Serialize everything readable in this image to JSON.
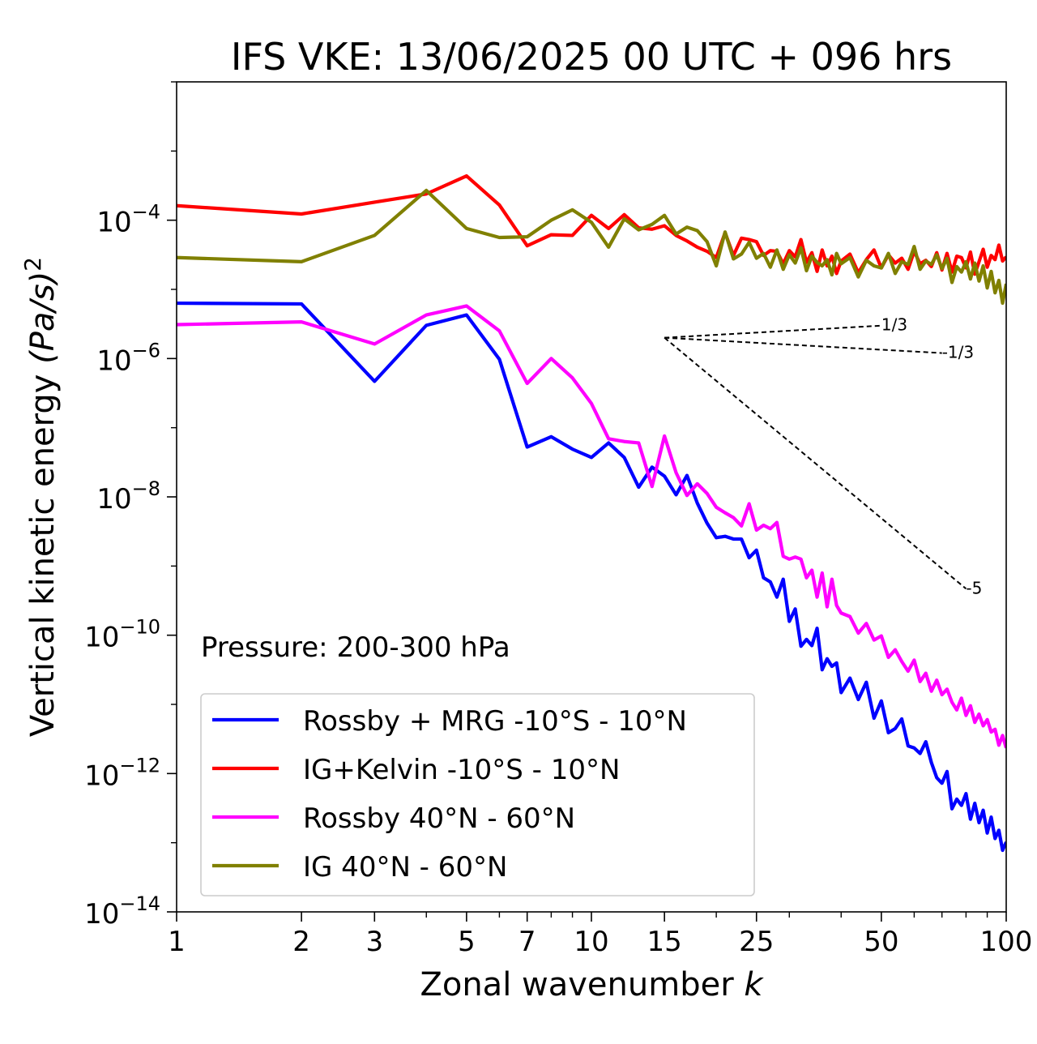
{
  "chart_data": {
    "type": "line",
    "title": "IFS VKE: 13/06/2025 00 UTC + 096 hrs",
    "xlabel": "Zonal wavenumber",
    "xlabel_var": "k",
    "ylabel": "Vertical kinetic energy",
    "ylabel_units": "(Pa/s)",
    "ylabel_exp": "2",
    "xscale": "log",
    "yscale": "log",
    "xlim": [
      1,
      100
    ],
    "ylim": [
      1e-14,
      0.01
    ],
    "xticks": [
      1,
      2,
      3,
      5,
      7,
      10,
      15,
      25,
      50,
      100
    ],
    "xtick_labels": [
      "1",
      "2",
      "3",
      "5",
      "7",
      "10",
      "15",
      "25",
      "50",
      "100"
    ],
    "yticks_exp": [
      -14,
      -12,
      -10,
      -8,
      -6,
      -4
    ],
    "ytick_base": "10",
    "ytick_exp_labels": [
      "−14",
      "−12",
      "−10",
      "−8",
      "−6",
      "−4"
    ],
    "annotation": "Pressure: 200-300 hPa",
    "legend_position": "lower-left",
    "grid": false,
    "reference_lines": [
      {
        "label": "1/3",
        "slope": 0.3333,
        "x": [
          15,
          50
        ],
        "y": [
          2e-06,
          2.99e-06
        ]
      },
      {
        "label": "-1/3",
        "slope": -0.3333,
        "x": [
          15,
          70
        ],
        "y": [
          2e-06,
          1.2e-06
        ]
      },
      {
        "label": "-5",
        "slope": -5,
        "x": [
          15,
          80
        ],
        "y": [
          2e-06,
          4.7e-10
        ]
      }
    ],
    "series": [
      {
        "name": "Rossby + MRG -10°S - 10°N",
        "color": "#0000ff",
        "k": [
          1,
          2,
          3,
          4,
          5,
          6,
          7,
          8,
          9,
          10,
          11,
          12,
          13,
          14,
          15,
          16,
          17,
          18,
          19,
          20,
          21,
          22,
          23,
          24,
          25,
          26,
          27,
          28,
          29,
          30,
          31,
          32,
          33,
          34,
          35,
          36,
          37,
          38,
          39,
          40,
          42,
          44,
          46,
          48,
          50,
          52,
          54,
          56,
          58,
          60,
          62,
          64,
          66,
          68,
          70,
          72,
          74,
          76,
          78,
          80,
          82,
          84,
          86,
          88,
          90,
          92,
          94,
          96,
          98,
          100
        ],
        "log10_y": [
          -5.2,
          -5.21,
          -6.33,
          -5.52,
          -5.37,
          -6.01,
          -7.28,
          -7.13,
          -7.31,
          -7.43,
          -7.22,
          -7.43,
          -7.86,
          -7.57,
          -7.7,
          -7.97,
          -7.69,
          -8.09,
          -8.38,
          -8.59,
          -8.57,
          -8.61,
          -8.61,
          -8.88,
          -8.77,
          -9.17,
          -9.23,
          -9.45,
          -9.19,
          -9.8,
          -9.62,
          -10.16,
          -10.06,
          -10.15,
          -9.9,
          -10.5,
          -10.34,
          -10.45,
          -10.4,
          -10.83,
          -10.62,
          -10.93,
          -10.68,
          -11.2,
          -10.95,
          -11.41,
          -11.35,
          -11.21,
          -11.6,
          -11.63,
          -11.71,
          -11.54,
          -11.84,
          -12.06,
          -12.14,
          -11.97,
          -12.51,
          -12.37,
          -12.46,
          -12.29,
          -12.66,
          -12.43,
          -12.71,
          -12.53,
          -12.86,
          -12.63,
          -12.94,
          -12.82,
          -13.11,
          -12.99
        ]
      },
      {
        "name": "IG+Kelvin -10°S - 10°N",
        "color": "#ff0000",
        "k": [
          1,
          2,
          3,
          4,
          5,
          6,
          7,
          8,
          9,
          10,
          11,
          12,
          13,
          14,
          15,
          16,
          17,
          18,
          19,
          20,
          21,
          22,
          23,
          24,
          25,
          26,
          27,
          28,
          29,
          30,
          31,
          32,
          33,
          34,
          35,
          36,
          37,
          38,
          39,
          40,
          42,
          44,
          46,
          48,
          50,
          52,
          54,
          56,
          58,
          60,
          62,
          64,
          66,
          68,
          70,
          72,
          74,
          76,
          78,
          80,
          82,
          84,
          86,
          88,
          90,
          92,
          94,
          96,
          98,
          100
        ],
        "log10_y": [
          -3.79,
          -3.91,
          -3.74,
          -3.62,
          -3.36,
          -3.78,
          -4.37,
          -4.21,
          -4.22,
          -3.93,
          -4.12,
          -3.92,
          -4.11,
          -4.13,
          -4.08,
          -4.22,
          -4.3,
          -4.39,
          -4.45,
          -4.54,
          -4.18,
          -4.51,
          -4.26,
          -4.28,
          -4.31,
          -4.51,
          -4.44,
          -4.45,
          -4.63,
          -4.44,
          -4.53,
          -4.28,
          -4.61,
          -4.47,
          -4.74,
          -4.43,
          -4.66,
          -4.52,
          -4.77,
          -4.59,
          -4.49,
          -4.76,
          -4.57,
          -4.43,
          -4.69,
          -4.5,
          -4.62,
          -4.55,
          -4.71,
          -4.45,
          -4.63,
          -4.58,
          -4.67,
          -4.47,
          -4.72,
          -4.48,
          -4.75,
          -4.52,
          -4.54,
          -4.69,
          -4.46,
          -4.78,
          -4.6,
          -4.42,
          -4.68,
          -4.51,
          -4.57,
          -4.36,
          -4.59,
          -4.53
        ]
      },
      {
        "name": "Rossby 40°N - 60°N",
        "color": "#ff00ff",
        "k": [
          1,
          2,
          3,
          4,
          5,
          6,
          7,
          8,
          9,
          10,
          11,
          12,
          13,
          14,
          15,
          16,
          17,
          18,
          19,
          20,
          21,
          22,
          23,
          24,
          25,
          26,
          27,
          28,
          29,
          30,
          31,
          32,
          33,
          34,
          35,
          36,
          37,
          38,
          39,
          40,
          42,
          44,
          46,
          48,
          50,
          52,
          54,
          56,
          58,
          60,
          62,
          64,
          66,
          68,
          70,
          72,
          74,
          76,
          78,
          80,
          82,
          84,
          86,
          88,
          90,
          92,
          94,
          96,
          98,
          100
        ],
        "log10_y": [
          -5.51,
          -5.47,
          -5.79,
          -5.37,
          -5.24,
          -5.6,
          -6.36,
          -6.0,
          -6.28,
          -6.65,
          -7.16,
          -7.2,
          -7.22,
          -7.85,
          -7.12,
          -7.65,
          -7.98,
          -7.81,
          -7.95,
          -8.15,
          -8.23,
          -8.3,
          -8.42,
          -8.1,
          -8.48,
          -8.41,
          -8.46,
          -8.37,
          -8.86,
          -8.9,
          -8.87,
          -8.9,
          -9.17,
          -9.06,
          -9.45,
          -9.1,
          -9.59,
          -9.19,
          -9.57,
          -9.68,
          -9.73,
          -9.97,
          -9.83,
          -10.07,
          -10.01,
          -10.32,
          -10.21,
          -10.38,
          -10.52,
          -10.36,
          -10.67,
          -10.55,
          -10.81,
          -10.65,
          -10.86,
          -10.78,
          -10.97,
          -11.08,
          -10.91,
          -11.16,
          -11.02,
          -11.26,
          -11.14,
          -11.31,
          -11.22,
          -11.4,
          -11.36,
          -11.59,
          -11.45,
          -11.63
        ]
      },
      {
        "name": "IG 40°N - 60°N",
        "color": "#808000",
        "k": [
          1,
          2,
          3,
          4,
          5,
          6,
          7,
          8,
          9,
          10,
          11,
          12,
          13,
          14,
          15,
          16,
          17,
          18,
          19,
          20,
          21,
          22,
          23,
          24,
          25,
          26,
          27,
          28,
          29,
          30,
          31,
          32,
          33,
          34,
          35,
          36,
          37,
          38,
          39,
          40,
          42,
          44,
          46,
          48,
          50,
          52,
          54,
          56,
          58,
          60,
          62,
          64,
          66,
          68,
          70,
          72,
          74,
          76,
          78,
          80,
          82,
          84,
          86,
          88,
          90,
          92,
          94,
          96,
          98,
          100
        ],
        "log10_y": [
          -4.54,
          -4.6,
          -4.22,
          -3.57,
          -4.12,
          -4.25,
          -4.24,
          -4.0,
          -3.85,
          -4.03,
          -4.39,
          -3.98,
          -4.14,
          -4.06,
          -3.93,
          -4.2,
          -4.1,
          -4.15,
          -4.31,
          -4.66,
          -4.17,
          -4.56,
          -4.49,
          -4.32,
          -4.55,
          -4.48,
          -4.68,
          -4.43,
          -4.71,
          -4.5,
          -4.62,
          -4.4,
          -4.73,
          -4.52,
          -4.61,
          -4.66,
          -4.57,
          -4.79,
          -4.48,
          -4.63,
          -4.54,
          -4.82,
          -4.58,
          -4.66,
          -4.69,
          -4.48,
          -4.77,
          -4.6,
          -4.64,
          -4.38,
          -4.71,
          -4.59,
          -4.64,
          -4.5,
          -4.7,
          -4.55,
          -4.9,
          -4.67,
          -4.75,
          -4.6,
          -4.85,
          -4.62,
          -4.88,
          -4.66,
          -4.98,
          -4.74,
          -5.05,
          -4.87,
          -5.2,
          -4.92
        ]
      }
    ]
  }
}
